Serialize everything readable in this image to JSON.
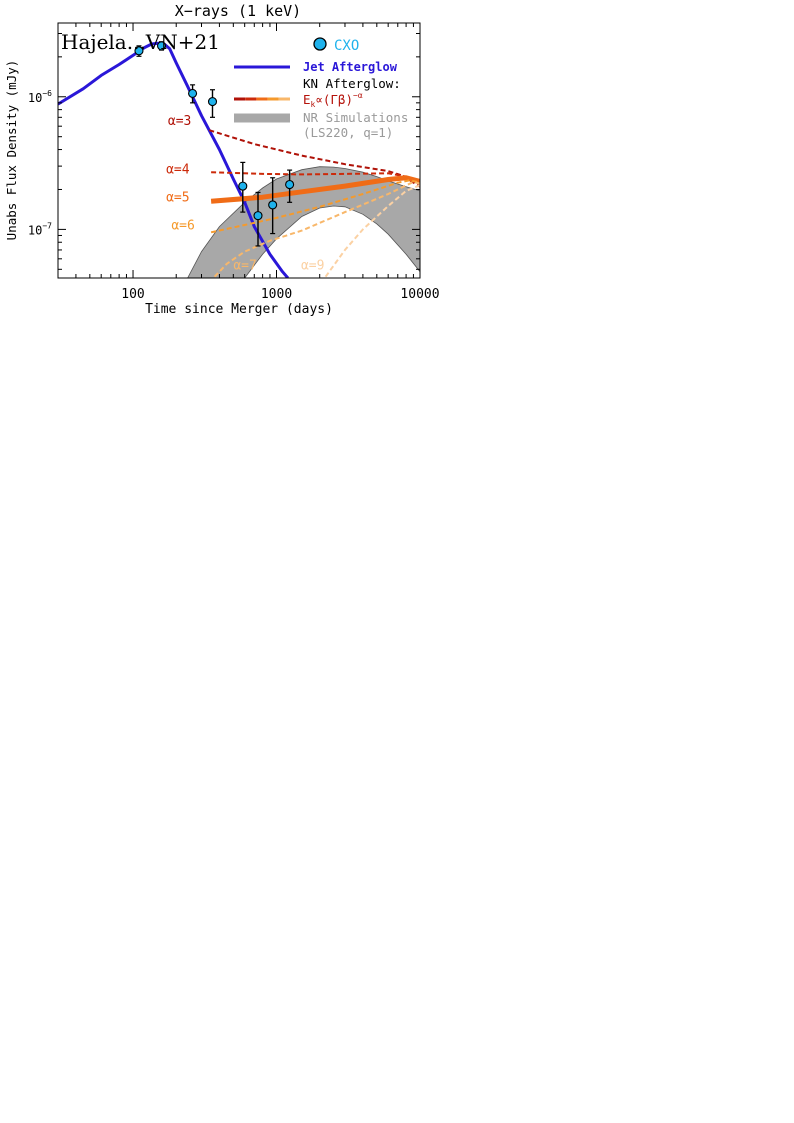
{
  "chart_data": {
    "type": "line",
    "title": "X−rays (1 keV)",
    "corner_label": "Hajela...VN+21",
    "xlabel": "Time since Merger (days)",
    "ylabel": "Unabs Flux Density (mJy)",
    "x_scale": "log",
    "y_scale": "log",
    "xlim": [
      30,
      10000
    ],
    "ylim": [
      4.3e-08,
      3.6e-06
    ],
    "x_ticks": [
      100,
      1000,
      10000
    ],
    "x_tick_labels": [
      "100",
      "1000",
      "10000"
    ],
    "y_ticks": [
      1e-07,
      1e-06
    ],
    "y_tick_labels": [
      {
        "base": "10",
        "exp": "−7"
      },
      {
        "base": "10",
        "exp": "−6"
      }
    ],
    "legend": {
      "placement": "top-right",
      "cxo_label": "CXO",
      "jet_label": "Jet Afterglow",
      "kn_header": "KN Afterglow:",
      "kn_formula": {
        "base": "E",
        "sub": "k",
        "mid": "∝(Γβ)",
        "exp": "−α"
      },
      "nr_label_1": "NR Simulations",
      "nr_label_2": "(LS220, q=1)"
    },
    "colors": {
      "jet": "#2a17d8",
      "cxo_fill": "#1fb2ec",
      "cxo_label": "#1fb2ec",
      "nr_band": "#a8a8a8",
      "kn_header": "#000000",
      "kn_formula": "#b5120a",
      "nr_text": "#9a9a9a",
      "alpha3": "#b01208",
      "alpha4": "#cc2a0a",
      "alpha5": "#f06c17",
      "alpha6": "#f59a2c",
      "alpha7": "#f8b76a",
      "alpha9": "#fbd1a3"
    },
    "series": [
      {
        "name": "Jet Afterglow",
        "style": "solid",
        "x": [
          30,
          45,
          60,
          80,
          100,
          120,
          135,
          150,
          165,
          180,
          200,
          240,
          300,
          400,
          500,
          600,
          700,
          900,
          1100,
          1200
        ],
        "y": [
          8.8e-07,
          1.15e-06,
          1.45e-06,
          1.75e-06,
          2.05e-06,
          2.35e-06,
          2.5e-06,
          2.53e-06,
          2.5e-06,
          2.3e-06,
          1.8e-06,
          1.2e-06,
          7.2e-07,
          4e-07,
          2.4e-07,
          1.6e-07,
          1.05e-07,
          6.5e-08,
          4.8e-08,
          4.3e-08
        ]
      },
      {
        "name": "α=3",
        "style": "dashed",
        "x": [
          340,
          700,
          1500,
          3000,
          6000,
          7500,
          10000
        ],
        "y": [
          5.6e-07,
          4.4e-07,
          3.6e-07,
          3.1e-07,
          2.75e-07,
          2.55e-07,
          2.1e-07
        ]
      },
      {
        "name": "α=4",
        "style": "dashed",
        "x": [
          350,
          800,
          1500,
          3000,
          6000,
          8000,
          10000
        ],
        "y": [
          2.7e-07,
          2.62e-07,
          2.6e-07,
          2.62e-07,
          2.65e-07,
          2.5e-07,
          2.2e-07
        ]
      },
      {
        "name": "α=5",
        "style": "thick",
        "x": [
          350,
          800,
          1500,
          3000,
          6000,
          8000,
          10000
        ],
        "y": [
          1.63e-07,
          1.75e-07,
          1.92e-07,
          2.12e-07,
          2.38e-07,
          2.45e-07,
          2.3e-07
        ]
      },
      {
        "name": "α=6",
        "style": "dashed",
        "x": [
          350,
          600,
          1000,
          2000,
          4000,
          7000,
          8500,
          10000
        ],
        "y": [
          9.5e-08,
          1.08e-07,
          1.22e-07,
          1.48e-07,
          1.85e-07,
          2.25e-07,
          2.35e-07,
          2.25e-07
        ]
      },
      {
        "name": "α=7",
        "style": "dashed",
        "x": [
          370,
          450,
          600,
          900,
          1500,
          3000,
          6000,
          9000,
          10000
        ],
        "y": [
          4.4e-08,
          5.5e-08,
          6.8e-08,
          8.2e-08,
          9.8e-08,
          1.35e-07,
          1.85e-07,
          2.28e-07,
          2.22e-07
        ]
      },
      {
        "name": "α=9",
        "style": "dashed",
        "x": [
          2200,
          3000,
          4000,
          6000,
          8000,
          10000
        ],
        "y": [
          4.4e-08,
          7e-08,
          1e-07,
          1.5e-07,
          1.95e-07,
          2.15e-07
        ]
      },
      {
        "name": "NR Simulations",
        "style": "band",
        "x": [
          240,
          300,
          400,
          600,
          800,
          1000,
          1500,
          2000,
          2500,
          3000,
          4000,
          5000,
          6000,
          8000,
          10000
        ],
        "y_upper": [
          4.3e-08,
          6.8e-08,
          1.05e-07,
          1.6e-07,
          2.05e-07,
          2.4e-07,
          2.82e-07,
          2.97e-07,
          2.95e-07,
          2.88e-07,
          2.7e-07,
          2.5e-07,
          2.32e-07,
          2.1e-07,
          1.95e-07
        ],
        "y_lower": [
          null,
          null,
          null,
          4.3e-08,
          6.5e-08,
          8.5e-08,
          1.25e-07,
          1.45e-07,
          1.5e-07,
          1.48e-07,
          1.3e-07,
          1.1e-07,
          9.2e-08,
          6.5e-08,
          4.8e-08
        ]
      },
      {
        "name": "CXO",
        "style": "points",
        "points": [
          {
            "x": 110,
            "y": 2.22e-06,
            "ylo": 2.02e-06,
            "yhi": 2.42e-06
          },
          {
            "x": 158,
            "y": 2.42e-06,
            "ylo": 2.25e-06,
            "yhi": 2.6e-06
          },
          {
            "x": 260,
            "y": 1.06e-06,
            "ylo": 9e-07,
            "yhi": 1.23e-06
          },
          {
            "x": 358,
            "y": 9.2e-07,
            "ylo": 7e-07,
            "yhi": 1.13e-06
          },
          {
            "x": 582,
            "y": 2.12e-07,
            "ylo": 1.35e-07,
            "yhi": 3.2e-07
          },
          {
            "x": 743,
            "y": 1.27e-07,
            "ylo": 7.5e-08,
            "yhi": 1.9e-07
          },
          {
            "x": 940,
            "y": 1.53e-07,
            "ylo": 9.3e-08,
            "yhi": 2.45e-07
          },
          {
            "x": 1234,
            "y": 2.18e-07,
            "ylo": 1.6e-07,
            "yhi": 2.8e-07
          }
        ]
      }
    ],
    "annotations": [
      {
        "text": "α=3",
        "series": "α=3",
        "x": 175,
        "y": 6.1e-07
      },
      {
        "text": "α=4",
        "series": "α=4",
        "x": 170,
        "y": 2.65e-07
      },
      {
        "text": "α=5",
        "series": "α=5",
        "x": 170,
        "y": 1.62e-07
      },
      {
        "text": "α=6",
        "series": "α=6",
        "x": 185,
        "y": 1e-07
      },
      {
        "text": "α=7",
        "series": "α=7",
        "x": 500,
        "y": 5e-08
      },
      {
        "text": "α=9",
        "series": "α=9",
        "x": 1480,
        "y": 5e-08
      }
    ]
  }
}
